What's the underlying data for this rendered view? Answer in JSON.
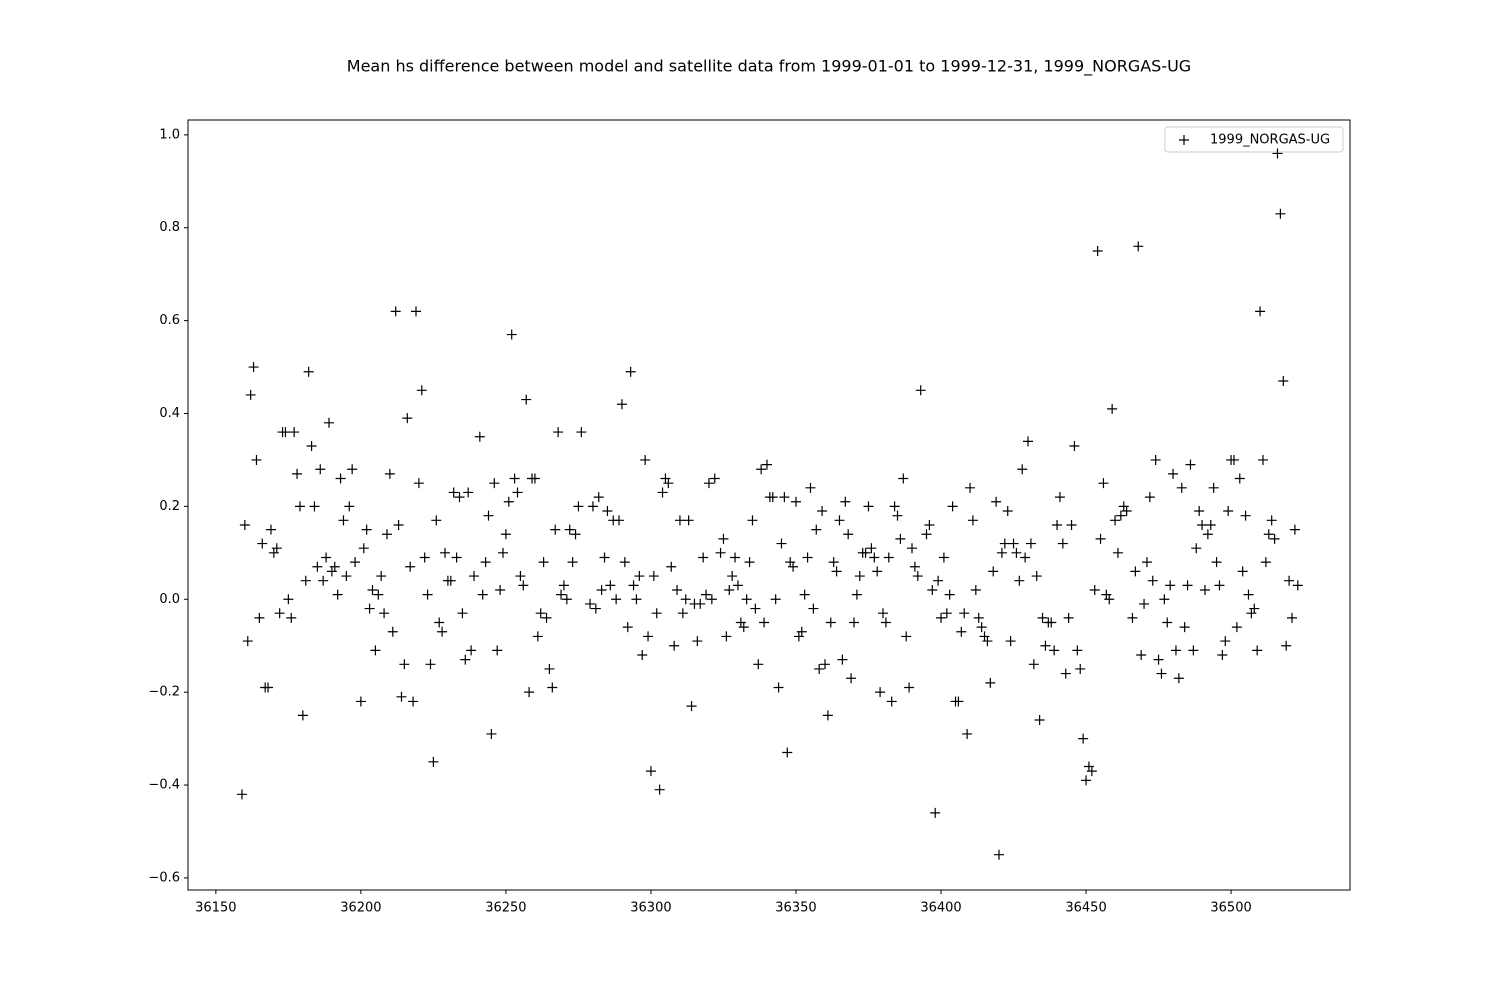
{
  "chart_data": {
    "type": "scatter",
    "title": "Mean hs difference between model and satellite data from 1999-01-01 to 1999-12-31, 1999_NORGAS-UG",
    "xlim": [
      36140.4,
      36541.0
    ],
    "ylim": [
      -0.626,
      1.032
    ],
    "xticks": [
      36150,
      36200,
      36250,
      36300,
      36350,
      36400,
      36450,
      36500
    ],
    "yticks": [
      {
        "value": -0.6,
        "label": "−0.6"
      },
      {
        "value": -0.4,
        "label": "−0.4"
      },
      {
        "value": -0.2,
        "label": "−0.2"
      },
      {
        "value": 0.0,
        "label": "0.0"
      },
      0.2,
      0.4,
      0.6,
      0.8,
      {
        "value": 1.0,
        "label": "1.0"
      }
    ],
    "grid": false,
    "legend": "upper right",
    "x": [
      36159,
      36160,
      36161,
      36162,
      36163,
      36164,
      36165,
      36166,
      36167,
      36168,
      36169,
      36170,
      36171,
      36172,
      36173,
      36174,
      36175,
      36176,
      36177,
      36178,
      36179,
      36180,
      36181,
      36182,
      36183,
      36184,
      36185,
      36186,
      36187,
      36188,
      36189,
      36190,
      36191,
      36192,
      36193,
      36194,
      36195,
      36196,
      36197,
      36198,
      36200,
      36201,
      36202,
      36203,
      36204,
      36205,
      36206,
      36207,
      36208,
      36209,
      36210,
      36211,
      36212,
      36213,
      36214,
      36215,
      36216,
      36217,
      36218,
      36219,
      36220,
      36221,
      36222,
      36223,
      36224,
      36225,
      36226,
      36227,
      36228,
      36229,
      36230,
      36231,
      36232,
      36233,
      36234,
      36235,
      36236,
      36237,
      36238,
      36239,
      36241,
      36242,
      36243,
      36244,
      36245,
      36246,
      36247,
      36248,
      36249,
      36250,
      36251,
      36252,
      36253,
      36254,
      36255,
      36256,
      36257,
      36258,
      36259,
      36260,
      36261,
      36262,
      36263,
      36264,
      36265,
      36266,
      36267,
      36268,
      36269,
      36270,
      36271,
      36272,
      36273,
      36274,
      36275,
      36276,
      36279,
      36280,
      36281,
      36282,
      36283,
      36284,
      36285,
      36286,
      36287,
      36288,
      36289,
      36290,
      36291,
      36292,
      36293,
      36294,
      36295,
      36296,
      36297,
      36298,
      36299,
      36300,
      36301,
      36302,
      36303,
      36304,
      36305,
      36306,
      36307,
      36308,
      36309,
      36310,
      36311,
      36312,
      36313,
      36314,
      36315,
      36316,
      36317,
      36318,
      36319,
      36320,
      36321,
      36322,
      36324,
      36325,
      36326,
      36327,
      36328,
      36329,
      36330,
      36331,
      36332,
      36333,
      36334,
      36335,
      36336,
      36337,
      36338,
      36339,
      36340,
      36341,
      36342,
      36343,
      36344,
      36345,
      36346,
      36347,
      36348,
      36349,
      36350,
      36351,
      36352,
      36353,
      36354,
      36355,
      36356,
      36357,
      36358,
      36359,
      36360,
      36361,
      36362,
      36363,
      36364,
      36365,
      36366,
      36367,
      36368,
      36369,
      36370,
      36371,
      36372,
      36373,
      36374,
      36375,
      36376,
      36377,
      36378,
      36379,
      36380,
      36381,
      36382,
      36383,
      36384,
      36385,
      36386,
      36387,
      36388,
      36389,
      36390,
      36391,
      36392,
      36393,
      36395,
      36396,
      36397,
      36398,
      36399,
      36400,
      36401,
      36402,
      36403,
      36404,
      36405,
      36406,
      36407,
      36408,
      36409,
      36410,
      36411,
      36412,
      36413,
      36414,
      36415,
      36416,
      36417,
      36418,
      36419,
      36420,
      36421,
      36422,
      36423,
      36424,
      36425,
      36426,
      36427,
      36428,
      36429,
      36430,
      36431,
      36432,
      36433,
      36434,
      36435,
      36436,
      36437,
      36438,
      36439,
      36440,
      36441,
      36442,
      36443,
      36444,
      36445,
      36446,
      36447,
      36448,
      36449,
      36450,
      36451,
      36452,
      36453,
      36454,
      36455,
      36456,
      36457,
      36458,
      36459,
      36460,
      36461,
      36462,
      36463,
      36464,
      36466,
      36467,
      36468,
      36469,
      36470,
      36471,
      36472,
      36473,
      36474,
      36475,
      36476,
      36477,
      36478,
      36479,
      36480,
      36481,
      36482,
      36483,
      36484,
      36485,
      36486,
      36487,
      36488,
      36489,
      36490,
      36491,
      36492,
      36493,
      36494,
      36495,
      36496,
      36497,
      36498,
      36499,
      36500,
      36501,
      36502,
      36503,
      36504,
      36505,
      36506,
      36507,
      36508,
      36509,
      36510,
      36511,
      36512,
      36513,
      36514,
      36515,
      36516,
      36517,
      36518,
      36519,
      36520,
      36521,
      36522,
      36523
    ],
    "series": [
      {
        "name": "1999_NORGAS-UG",
        "color": "#000000",
        "values": [
          -0.42,
          0.16,
          -0.09,
          0.44,
          0.5,
          0.3,
          -0.04,
          0.12,
          -0.19,
          -0.19,
          0.15,
          0.1,
          0.11,
          -0.03,
          0.36,
          0.36,
          0.0,
          -0.04,
          0.36,
          0.27,
          0.2,
          -0.25,
          0.04,
          0.49,
          0.33,
          0.2,
          0.07,
          0.28,
          0.04,
          0.09,
          0.38,
          0.06,
          0.07,
          0.01,
          0.26,
          0.17,
          0.05,
          0.2,
          0.28,
          0.08,
          -0.22,
          0.11,
          0.15,
          -0.02,
          0.02,
          -0.11,
          0.01,
          0.05,
          -0.03,
          0.14,
          0.27,
          -0.07,
          0.62,
          0.16,
          -0.21,
          -0.14,
          0.39,
          0.07,
          -0.22,
          0.62,
          0.25,
          0.45,
          0.09,
          0.01,
          -0.14,
          -0.35,
          0.17,
          -0.05,
          -0.07,
          0.1,
          0.04,
          0.04,
          0.23,
          0.09,
          0.22,
          -0.03,
          -0.13,
          0.23,
          -0.11,
          0.05,
          0.35,
          0.01,
          0.08,
          0.18,
          -0.29,
          0.25,
          -0.11,
          0.02,
          0.1,
          0.14,
          0.21,
          0.57,
          0.26,
          0.23,
          0.05,
          0.03,
          0.43,
          -0.2,
          0.26,
          0.26,
          -0.08,
          -0.03,
          0.08,
          -0.04,
          -0.15,
          -0.19,
          0.15,
          0.36,
          0.01,
          0.03,
          -0.0,
          0.15,
          0.08,
          0.14,
          0.2,
          0.36,
          -0.01,
          0.2,
          -0.02,
          0.22,
          0.02,
          0.09,
          0.19,
          0.03,
          0.17,
          -0.0,
          0.17,
          0.42,
          0.08,
          -0.06,
          0.49,
          0.03,
          -0.0,
          0.05,
          -0.12,
          0.3,
          -0.08,
          -0.37,
          0.05,
          -0.03,
          -0.41,
          0.23,
          0.26,
          0.25,
          0.07,
          -0.1,
          0.02,
          0.17,
          -0.03,
          -0.0,
          0.17,
          -0.23,
          -0.01,
          -0.09,
          -0.01,
          0.09,
          0.01,
          0.25,
          0.0,
          0.26,
          0.1,
          0.13,
          -0.08,
          0.02,
          0.05,
          0.09,
          0.03,
          -0.05,
          -0.06,
          -0.0,
          0.08,
          0.17,
          -0.02,
          -0.14,
          0.28,
          -0.05,
          0.29,
          0.22,
          0.22,
          0.0,
          -0.19,
          0.12,
          0.22,
          -0.33,
          0.08,
          0.07,
          0.21,
          -0.08,
          -0.07,
          0.01,
          0.09,
          0.24,
          -0.02,
          0.15,
          -0.15,
          0.19,
          -0.14,
          -0.25,
          -0.05,
          0.08,
          0.06,
          0.17,
          -0.13,
          0.21,
          0.14,
          -0.17,
          -0.05,
          0.01,
          0.05,
          0.1,
          0.1,
          0.2,
          0.11,
          0.09,
          0.06,
          -0.2,
          -0.03,
          -0.05,
          0.09,
          -0.22,
          0.2,
          0.18,
          0.13,
          0.26,
          -0.08,
          -0.19,
          0.11,
          0.07,
          0.05,
          0.45,
          0.14,
          0.16,
          0.02,
          -0.46,
          0.04,
          -0.04,
          0.09,
          -0.03,
          0.01,
          0.2,
          -0.22,
          -0.22,
          -0.07,
          -0.03,
          -0.29,
          0.24,
          0.17,
          0.02,
          -0.04,
          -0.06,
          -0.08,
          -0.09,
          -0.18,
          0.06,
          0.21,
          -0.55,
          0.1,
          0.12,
          0.19,
          -0.09,
          0.12,
          0.1,
          0.04,
          0.28,
          0.09,
          0.34,
          0.12,
          -0.14,
          0.05,
          -0.26,
          -0.04,
          -0.1,
          -0.05,
          -0.05,
          -0.11,
          0.16,
          0.22,
          0.12,
          -0.16,
          -0.04,
          0.16,
          0.33,
          -0.11,
          -0.15,
          -0.3,
          -0.39,
          -0.36,
          -0.37,
          0.02,
          0.75,
          0.13,
          0.25,
          0.01,
          0.0,
          0.41,
          0.17,
          0.1,
          0.18,
          0.2,
          0.19,
          -0.04,
          0.06,
          0.76,
          -0.12,
          -0.01,
          0.08,
          0.22,
          0.04,
          0.3,
          -0.13,
          -0.16,
          -0.0,
          -0.05,
          0.03,
          0.27,
          -0.11,
          -0.17,
          0.24,
          -0.06,
          0.03,
          0.29,
          -0.11,
          0.11,
          0.19,
          0.16,
          0.02,
          0.14,
          0.16,
          0.24,
          0.08,
          0.03,
          -0.12,
          -0.09,
          0.19,
          0.3,
          0.3,
          -0.06,
          0.26,
          0.06,
          0.18,
          0.01,
          -0.03,
          -0.02,
          -0.11,
          0.62,
          0.3,
          0.08,
          0.14,
          0.17,
          0.13,
          0.96,
          0.83,
          0.47,
          -0.1,
          0.04,
          -0.04,
          0.15,
          0.03
        ]
      }
    ]
  }
}
